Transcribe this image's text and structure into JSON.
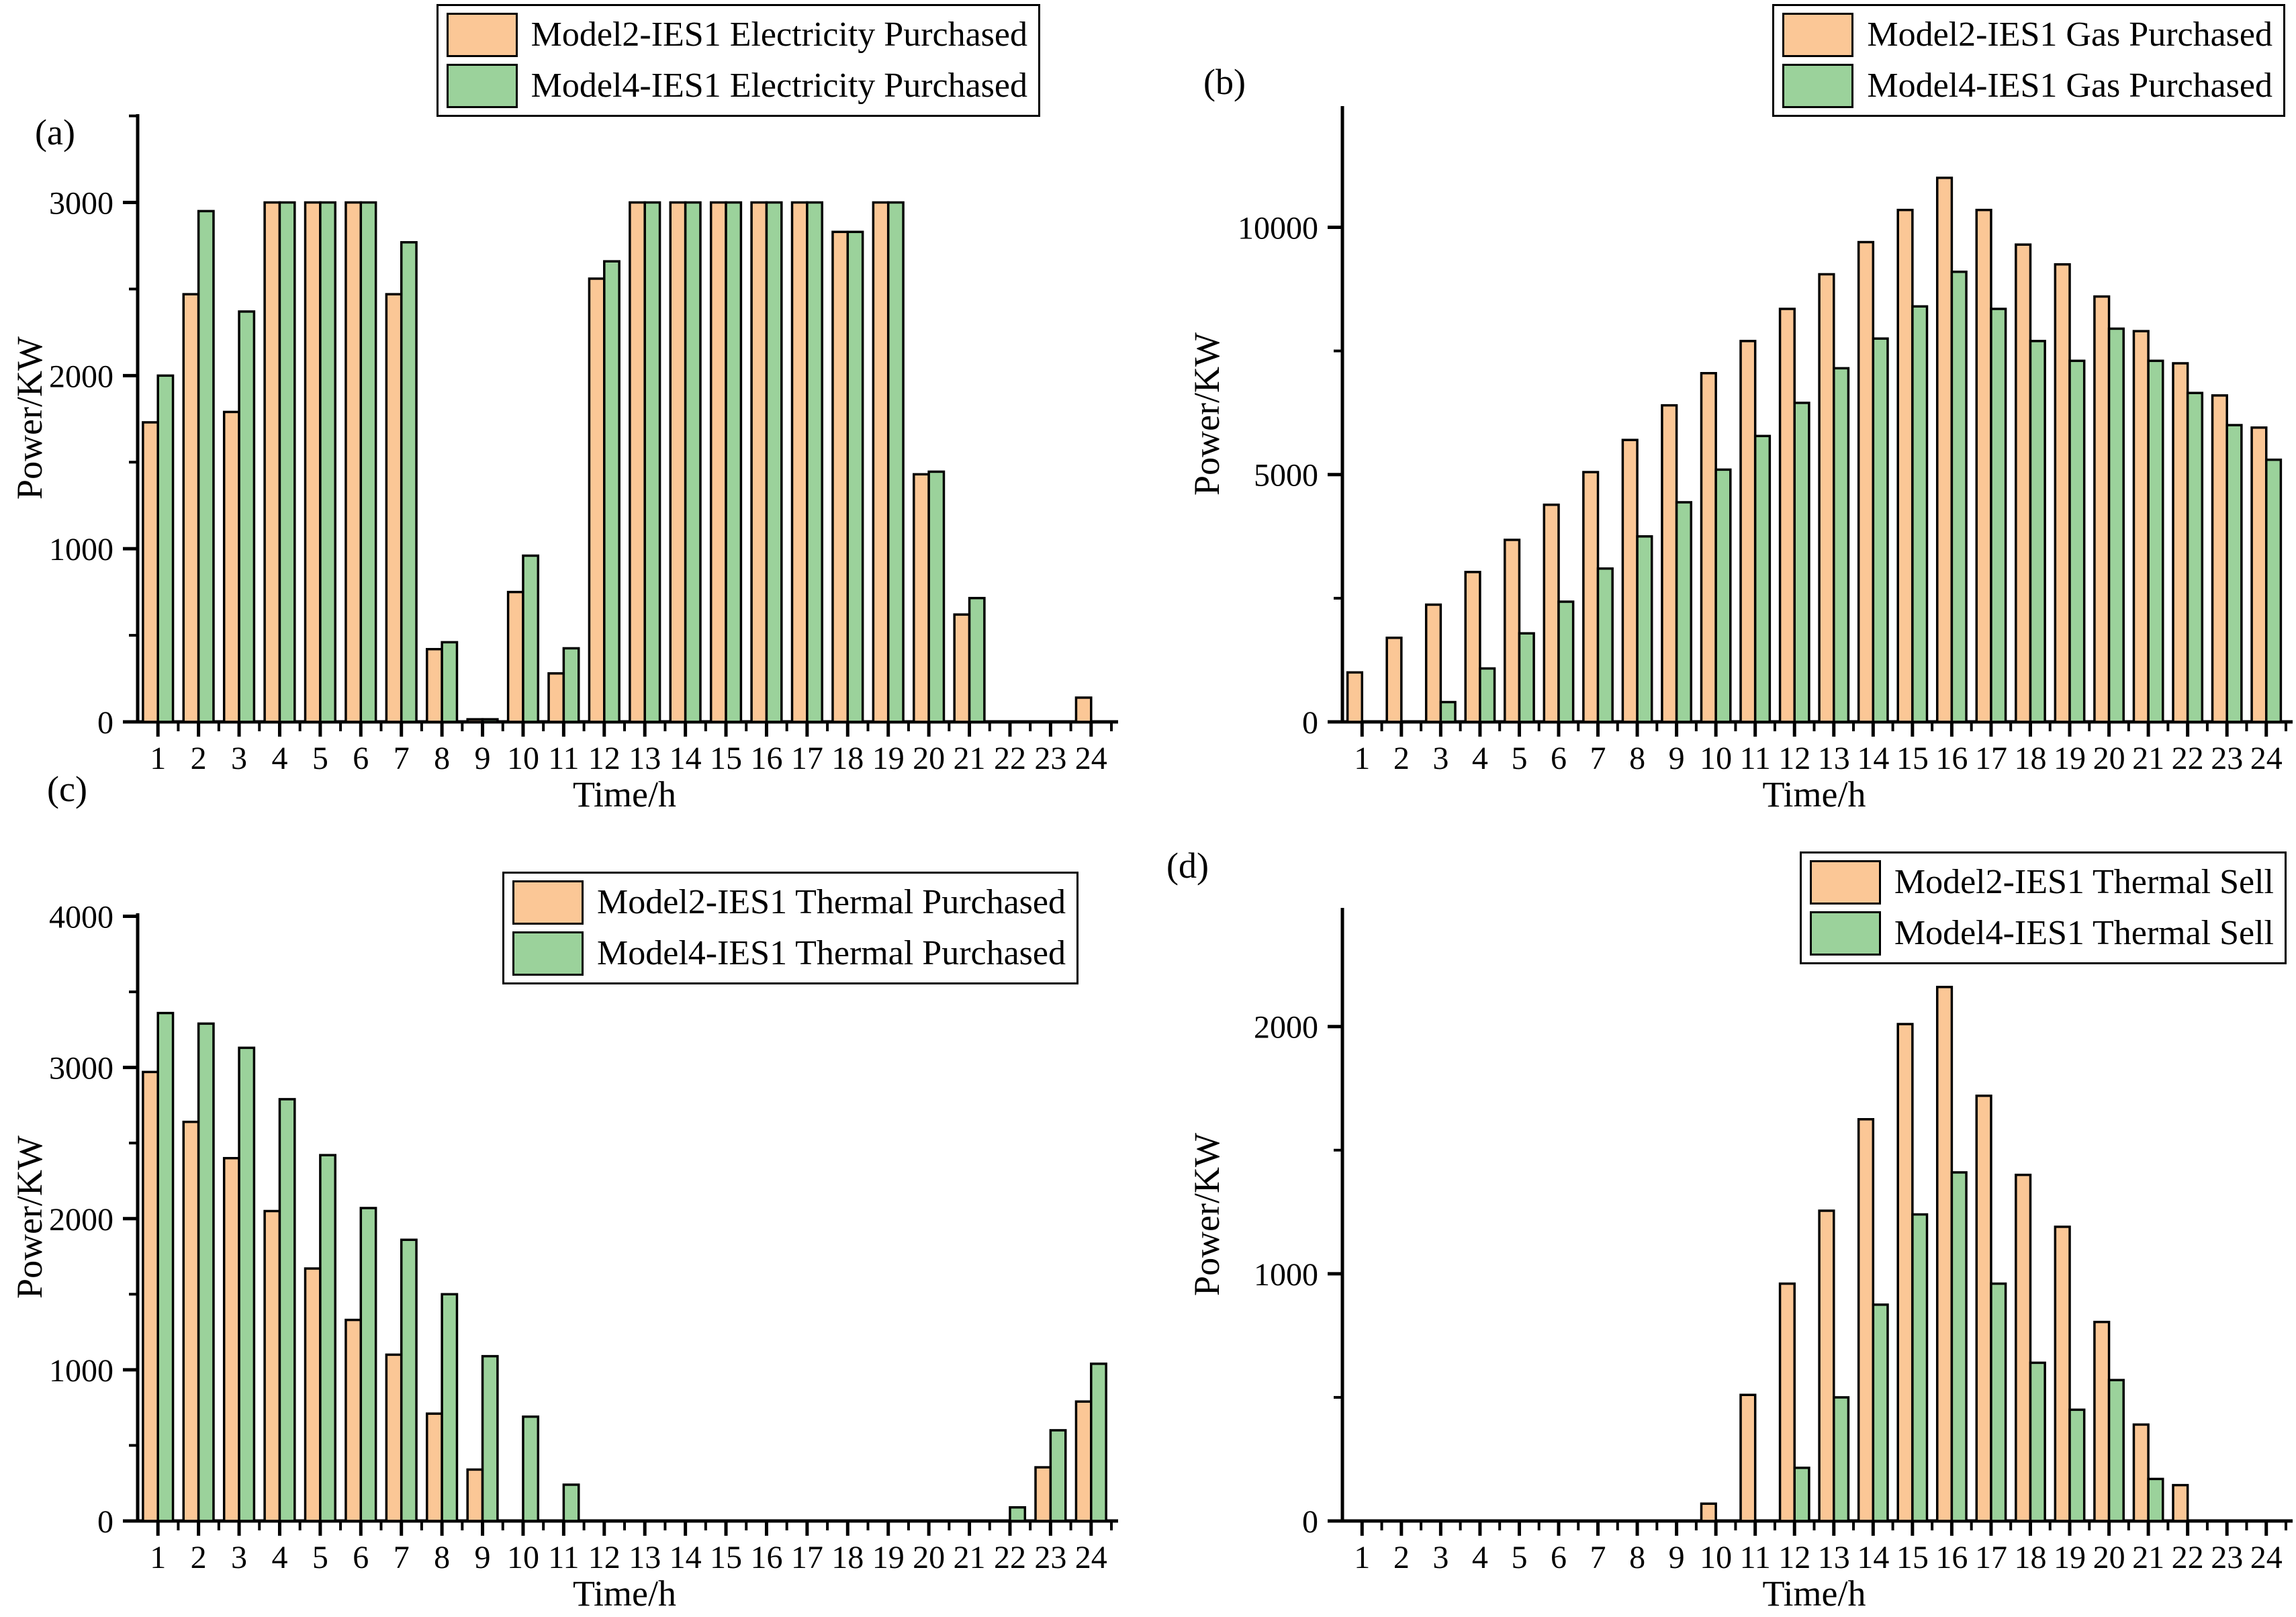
{
  "colors": {
    "model2": "#FBC796",
    "model4": "#9BD29B",
    "edge": "#000000",
    "axis": "#000000",
    "background": "#FFFFFF"
  },
  "chart_data": [
    {
      "panel_label": "(a)",
      "type": "bar",
      "xlabel": "Time/h",
      "ylabel": "Power/KW",
      "categories": [
        1,
        2,
        3,
        4,
        5,
        6,
        7,
        8,
        9,
        10,
        11,
        12,
        13,
        14,
        15,
        16,
        17,
        18,
        19,
        20,
        21,
        22,
        23,
        24
      ],
      "ylim": [
        0,
        3510
      ],
      "yticks_major": [
        0,
        1000,
        2000,
        3000
      ],
      "yticks_minor": [
        500,
        1500,
        2500,
        3500
      ],
      "grid": false,
      "legend_position": "top-right",
      "series": [
        {
          "name": "Model2-IES1 Electricity Purchased",
          "color_key": "model2",
          "values": [
            1730,
            2470,
            1790,
            3000,
            3000,
            3000,
            2470,
            420,
            15,
            750,
            280,
            2560,
            3000,
            3000,
            3000,
            3000,
            3000,
            2830,
            3000,
            1430,
            620,
            0,
            0,
            140
          ]
        },
        {
          "name": "Model4-IES1 Electricity Purchased",
          "color_key": "model4",
          "values": [
            2000,
            2950,
            2370,
            3000,
            3000,
            3000,
            2770,
            460,
            15,
            960,
            425,
            2660,
            3000,
            3000,
            3000,
            3000,
            3000,
            2830,
            3000,
            1445,
            715,
            0,
            0,
            0
          ]
        }
      ]
    },
    {
      "panel_label": "(b)",
      "type": "bar",
      "xlabel": "Time/h",
      "ylabel": "Power/KW",
      "categories": [
        1,
        2,
        3,
        4,
        5,
        6,
        7,
        8,
        9,
        10,
        11,
        12,
        13,
        14,
        15,
        16,
        17,
        18,
        19,
        20,
        21,
        22,
        23,
        24
      ],
      "ylim": [
        0,
        12450
      ],
      "yticks_major": [
        0,
        5000,
        10000
      ],
      "yticks_minor": [
        2500,
        7500
      ],
      "grid": false,
      "legend_position": "top-right",
      "series": [
        {
          "name": "Model2-IES1 Gas Purchased",
          "color_key": "model2",
          "values": [
            1000,
            1700,
            2370,
            3030,
            3680,
            4390,
            5050,
            5700,
            6400,
            7050,
            7700,
            8350,
            9050,
            9700,
            10350,
            11000,
            10350,
            9650,
            9250,
            8600,
            7900,
            7250,
            6600,
            5950
          ]
        },
        {
          "name": "Model4-IES1 Gas Purchased",
          "color_key": "model4",
          "values": [
            0,
            0,
            400,
            1080,
            1790,
            2430,
            3100,
            3750,
            4440,
            5100,
            5780,
            6450,
            7150,
            7750,
            8400,
            9100,
            8350,
            7700,
            7300,
            7950,
            7300,
            6650,
            6000,
            5300
          ]
        }
      ]
    },
    {
      "panel_label": "(c)",
      "type": "bar",
      "xlabel": "Time/h",
      "ylabel": "Power/KW",
      "categories": [
        1,
        2,
        3,
        4,
        5,
        6,
        7,
        8,
        9,
        10,
        11,
        12,
        13,
        14,
        15,
        16,
        17,
        18,
        19,
        20,
        21,
        22,
        23,
        24
      ],
      "ylim": [
        0,
        4020
      ],
      "yticks_major": [
        0,
        1000,
        2000,
        3000,
        4000
      ],
      "yticks_minor": [
        500,
        1500,
        2500,
        3500
      ],
      "grid": false,
      "legend_position": "top-right",
      "series": [
        {
          "name": "Model2-IES1 Thermal Purchased",
          "color_key": "model2",
          "values": [
            2970,
            2640,
            2400,
            2050,
            1670,
            1330,
            1100,
            710,
            340,
            0,
            0,
            0,
            0,
            0,
            0,
            0,
            0,
            0,
            0,
            0,
            0,
            0,
            355,
            790
          ]
        },
        {
          "name": "Model4-IES1 Thermal Purchased",
          "color_key": "model4",
          "values": [
            3360,
            3290,
            3130,
            2790,
            2420,
            2070,
            1860,
            1500,
            1090,
            690,
            240,
            0,
            0,
            0,
            0,
            0,
            0,
            0,
            0,
            0,
            0,
            90,
            600,
            1040
          ]
        }
      ]
    },
    {
      "panel_label": "(d)",
      "type": "bar",
      "xlabel": "Time/h",
      "ylabel": "Power/KW",
      "categories": [
        1,
        2,
        3,
        4,
        5,
        6,
        7,
        8,
        9,
        10,
        11,
        12,
        13,
        14,
        15,
        16,
        17,
        18,
        19,
        20,
        21,
        22,
        23,
        24
      ],
      "ylim": [
        0,
        2480
      ],
      "yticks_major": [
        0,
        1000,
        2000
      ],
      "yticks_minor": [
        500,
        1500
      ],
      "grid": false,
      "legend_position": "top-right",
      "series": [
        {
          "name": "Model2-IES1 Thermal Sell",
          "color_key": "model2",
          "values": [
            0,
            0,
            0,
            0,
            0,
            0,
            0,
            0,
            0,
            70,
            510,
            960,
            1255,
            1625,
            2010,
            2160,
            1720,
            1400,
            1190,
            805,
            390,
            145,
            0,
            0
          ]
        },
        {
          "name": "Model4-IES1 Thermal Sell",
          "color_key": "model4",
          "values": [
            0,
            0,
            0,
            0,
            0,
            0,
            0,
            0,
            0,
            0,
            0,
            215,
            500,
            875,
            1240,
            1410,
            960,
            640,
            450,
            570,
            170,
            0,
            0,
            0
          ]
        }
      ]
    }
  ]
}
